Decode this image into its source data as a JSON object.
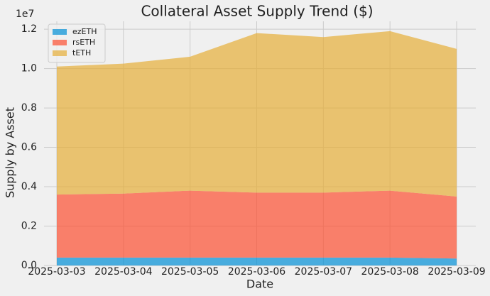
{
  "chart_data": {
    "type": "stacked_area",
    "title": "Collateral Asset Supply Trend ($)",
    "xlabel": "Date",
    "ylabel": "Supply by Asset",
    "y_offset_label": "1e7",
    "categories": [
      "2025-03-03",
      "2025-03-04",
      "2025-03-05",
      "2025-03-06",
      "2025-03-07",
      "2025-03-08",
      "2025-03-09"
    ],
    "series": [
      {
        "name": "ezETH",
        "color": "#008fd5",
        "values": [
          0.04,
          0.04,
          0.04,
          0.04,
          0.04,
          0.04,
          0.035
        ]
      },
      {
        "name": "rsETH",
        "color": "#fc4f30",
        "values": [
          0.32,
          0.325,
          0.34,
          0.33,
          0.33,
          0.34,
          0.315
        ]
      },
      {
        "name": "tETH",
        "color": "#e5ae38",
        "values": [
          0.65,
          0.66,
          0.68,
          0.81,
          0.79,
          0.81,
          0.75
        ]
      }
    ],
    "ylim": [
      0,
      1.24
    ],
    "yticks": [
      {
        "value": 0,
        "label": "0.0"
      },
      0.2,
      0.4,
      0.6,
      0.8,
      {
        "value": 1,
        "label": "1.0"
      },
      1.2
    ],
    "grid": true,
    "legend": "upper left"
  }
}
